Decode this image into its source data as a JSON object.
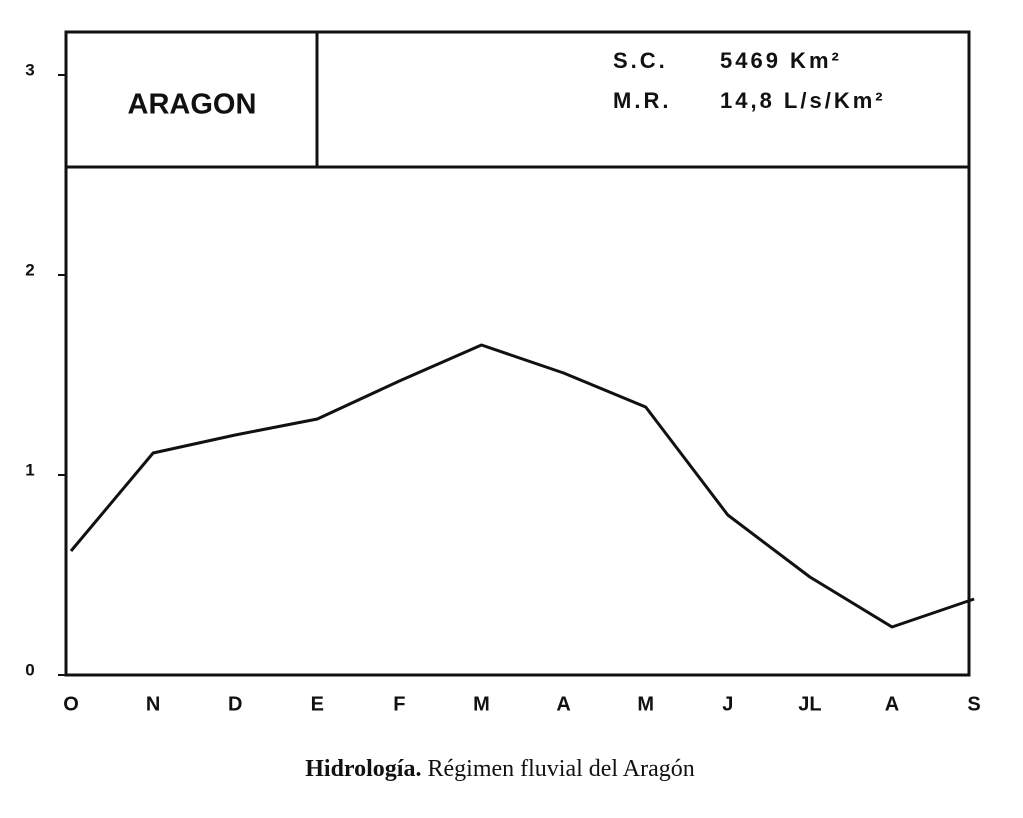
{
  "chart_data": {
    "type": "line",
    "annotations": [
      "ARAGON",
      "S.C.",
      "5469 Km²",
      "M.R.",
      "14,8 L/s/Km²"
    ],
    "caption": [
      "Hidrología.",
      "Régimen fluvial del Aragón"
    ],
    "categories": [
      "O",
      "N",
      "D",
      "E",
      "F",
      "M",
      "A",
      "M",
      "J",
      "JL",
      "A",
      "S"
    ],
    "values": [
      0.62,
      1.11,
      1.2,
      1.28,
      1.47,
      1.65,
      1.51,
      1.34,
      0.8,
      0.49,
      0.24,
      0.38
    ],
    "color": "#111111",
    "ylim": [
      0,
      3.2
    ],
    "yticks": [
      0,
      1,
      2,
      3
    ],
    "grid": false
  }
}
